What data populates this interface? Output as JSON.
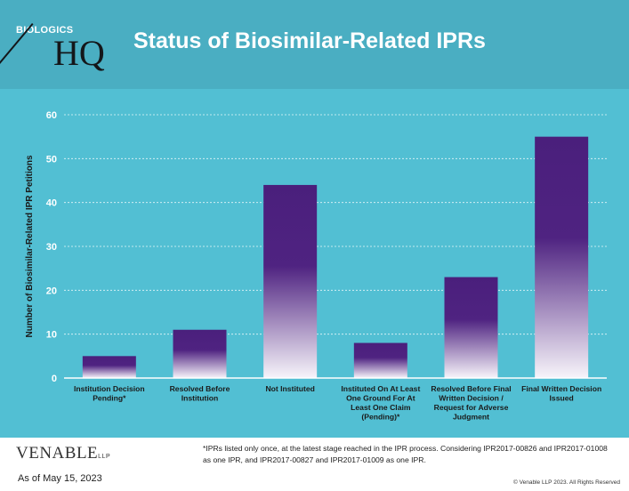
{
  "header": {
    "logo_top": "BIOLOGICS",
    "logo_main": "HQ",
    "title": "Status of Biosimilar-Related IPRs"
  },
  "footer": {
    "brand": "VENABLE",
    "brand_suffix": "LLP",
    "as_of": "As of May 15, 2023",
    "footnote": "*IPRs listed only once, at the latest stage reached in the IPR process.  Considering IPR2017-00826 and IPR2017-01008 as one IPR, and IPR2017-00827 and IPR2017-01009 as one IPR.",
    "copyright": "© Venable LLP 2023. All Rights Reserved"
  },
  "colors": {
    "header_bg": "#4aaec2",
    "chart_bg": "#52bfd3",
    "bar_top": "#4a1f7c",
    "bar_bottom": "#f7f4fa"
  },
  "chart_data": {
    "type": "bar",
    "title": "Status of Biosimilar-Related IPRs",
    "xlabel": "",
    "ylabel": "Number of Biosimilar-Related  IPR Petitions",
    "ylim": [
      0,
      60
    ],
    "yticks": [
      0,
      10,
      20,
      30,
      40,
      50,
      60
    ],
    "grid": true,
    "categories": [
      [
        "Institution Decision",
        "Pending*"
      ],
      [
        "Resolved Before",
        "Institution"
      ],
      [
        "Not Instituted"
      ],
      [
        "Instituted On At Least",
        "One Ground For At",
        "Least One Claim",
        "(Pending)*"
      ],
      [
        "Resolved Before Final",
        "Written Decision /",
        "Request for Adverse",
        "Judgment"
      ],
      [
        "Final Written Decision",
        "Issued"
      ]
    ],
    "values": [
      5,
      11,
      44,
      8,
      23,
      55
    ]
  }
}
